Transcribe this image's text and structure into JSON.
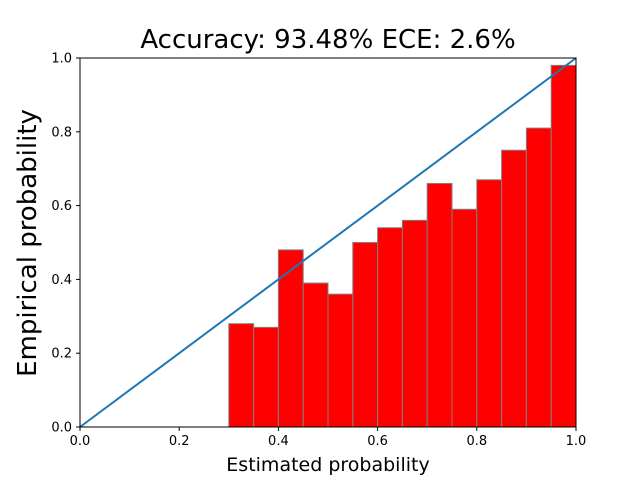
{
  "chart_data": {
    "type": "bar",
    "title": "Accuracy: 93.48% ECE: 2.6%",
    "xlabel": "Estimated probability",
    "ylabel": "Empirical probability",
    "xlim": [
      0.0,
      1.0
    ],
    "ylim": [
      0.0,
      1.0
    ],
    "xticks": [
      "0.0",
      "0.2",
      "0.4",
      "0.6",
      "0.8",
      "1.0"
    ],
    "yticks": [
      "0.0",
      "0.2",
      "0.4",
      "0.6",
      "0.8",
      "1.0"
    ],
    "bin_width": 0.05,
    "bins": [
      {
        "left": 0.3,
        "value": 0.28
      },
      {
        "left": 0.35,
        "value": 0.27
      },
      {
        "left": 0.4,
        "value": 0.48
      },
      {
        "left": 0.45,
        "value": 0.39
      },
      {
        "left": 0.5,
        "value": 0.36
      },
      {
        "left": 0.55,
        "value": 0.5
      },
      {
        "left": 0.6,
        "value": 0.54
      },
      {
        "left": 0.65,
        "value": 0.56
      },
      {
        "left": 0.7,
        "value": 0.66
      },
      {
        "left": 0.75,
        "value": 0.59
      },
      {
        "left": 0.8,
        "value": 0.67
      },
      {
        "left": 0.85,
        "value": 0.75
      },
      {
        "left": 0.9,
        "value": 0.81
      },
      {
        "left": 0.95,
        "value": 0.98
      }
    ],
    "reference_line": {
      "x": [
        0.0,
        1.0
      ],
      "y": [
        0.0,
        1.0
      ]
    },
    "bar_color": "#ff0000",
    "bar_edge_color": "#808080",
    "line_color": "#1f77b4",
    "grid": false
  }
}
